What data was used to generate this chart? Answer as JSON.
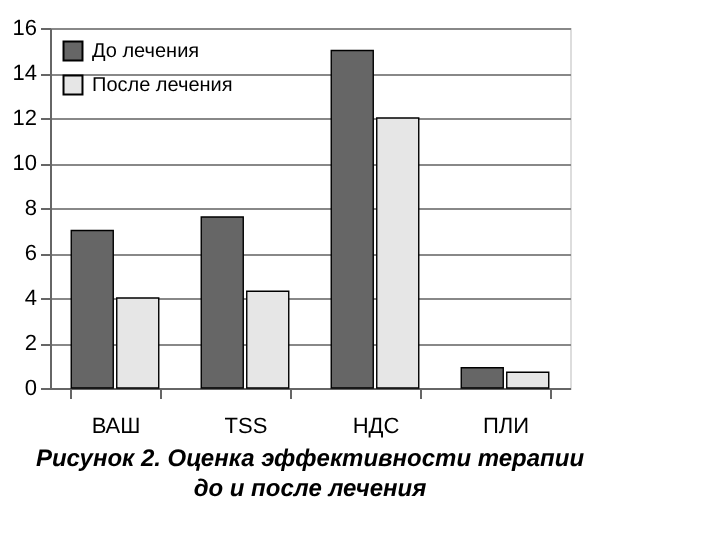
{
  "chart_data": {
    "type": "bar",
    "categories": [
      "ВАШ",
      "TSS",
      "НДС",
      "ПЛИ"
    ],
    "series": [
      {
        "name": "До лечения",
        "color": "#666666",
        "values": [
          7,
          7.6,
          15,
          0.9
        ]
      },
      {
        "name": "После лечения",
        "color": "#e6e6e6",
        "values": [
          4,
          4.3,
          12,
          0.7
        ]
      }
    ],
    "ylim": [
      0,
      16
    ],
    "yticks": [
      0,
      2,
      4,
      6,
      8,
      10,
      12,
      14,
      16
    ],
    "grid": "y",
    "legend": "top left",
    "annotations": [
      "Рисунок 2. Оценка эффективности терапии",
      "до и после лечения"
    ]
  }
}
